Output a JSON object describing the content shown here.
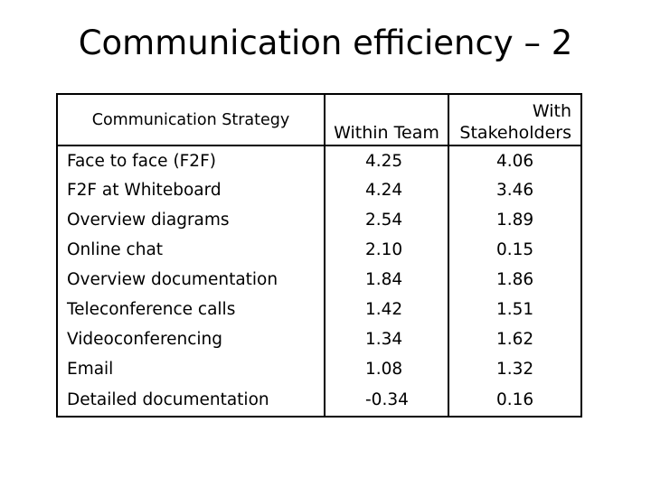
{
  "slide": {
    "title": "Communication efficiency – 2"
  },
  "table": {
    "headers": {
      "strategy": "Communication Strategy",
      "within_team": "Within Team",
      "stakeholders_line1": "With",
      "stakeholders_line2": "Stakeholders"
    },
    "rows": [
      {
        "strategy": "Face to face (F2F)",
        "within_team": "4.25",
        "stakeholders": "4.06"
      },
      {
        "strategy": "F2F at Whiteboard",
        "within_team": "4.24",
        "stakeholders": "3.46"
      },
      {
        "strategy": "Overview diagrams",
        "within_team": "2.54",
        "stakeholders": "1.89"
      },
      {
        "strategy": "Online chat",
        "within_team": "2.10",
        "stakeholders": "0.15"
      },
      {
        "strategy": "Overview documentation",
        "within_team": "1.84",
        "stakeholders": "1.86"
      },
      {
        "strategy": "Teleconference calls",
        "within_team": "1.42",
        "stakeholders": "1.51"
      },
      {
        "strategy": "Videoconferencing",
        "within_team": "1.34",
        "stakeholders": "1.62"
      },
      {
        "strategy": "Email",
        "within_team": "1.08",
        "stakeholders": "1.32"
      },
      {
        "strategy": "Detailed documentation",
        "within_team": "-0.34",
        "stakeholders": "0.16"
      }
    ]
  }
}
